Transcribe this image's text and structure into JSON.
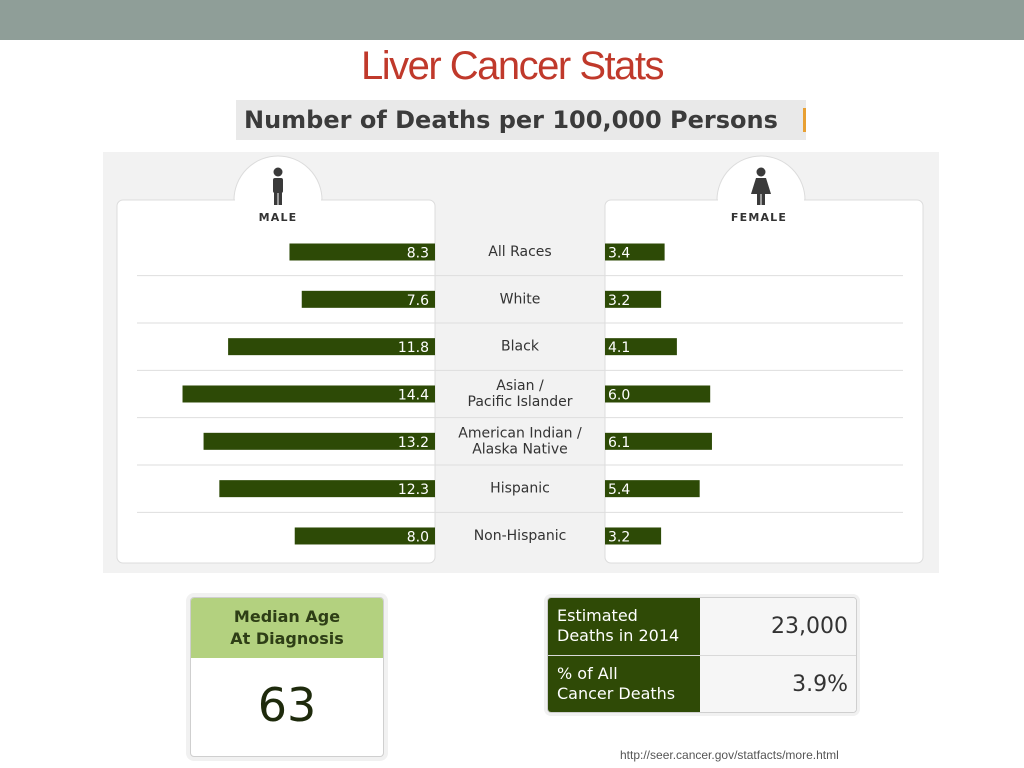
{
  "slide": {
    "title": "Liver Cancer Stats",
    "source": "http://seer.cancer.gov/statfacts/more.html"
  },
  "chart": {
    "heading": "Number of Deaths per 100,000 Persons"
  },
  "colors": {
    "bar": "#2d4a06",
    "title": "#c0392b",
    "top_bar": "#8f9e98",
    "median_header": "#b3d17f"
  },
  "chart_data": {
    "type": "bar",
    "title": "Number of Deaths per 100,000 Persons",
    "categories": [
      "All Races",
      "White",
      "Black",
      "Asian / Pacific Islander",
      "American Indian / Alaska Native",
      "Hispanic",
      "Non-Hispanic"
    ],
    "category_lines": [
      [
        "All Races"
      ],
      [
        "White"
      ],
      [
        "Black"
      ],
      [
        "Asian /",
        "Pacific Islander"
      ],
      [
        "American Indian /",
        "Alaska Native"
      ],
      [
        "Hispanic"
      ],
      [
        "Non-Hispanic"
      ]
    ],
    "series": [
      {
        "name": "MALE",
        "values": [
          8.3,
          7.6,
          11.8,
          14.4,
          13.2,
          12.3,
          8.0
        ],
        "labels": [
          "8.3",
          "7.6",
          "11.8",
          "14.4",
          "13.2",
          "12.3",
          "8.0"
        ],
        "icon": "male-person-icon"
      },
      {
        "name": "FEMALE",
        "values": [
          3.4,
          3.2,
          4.1,
          6.0,
          6.1,
          5.4,
          3.2
        ],
        "labels": [
          "3.4",
          "3.2",
          "4.1",
          "6.0",
          "6.1",
          "5.4",
          "3.2"
        ],
        "icon": "female-person-icon"
      }
    ],
    "orientation": "horizontal-butterfly",
    "xlim": [
      0,
      15
    ],
    "grid": false
  },
  "median_age": {
    "label_line1": "Median Age",
    "label_line2": "At Diagnosis",
    "value": "63"
  },
  "stats": [
    {
      "label_line1": "Estimated",
      "label_line2": "Deaths in 2014",
      "value": "23,000"
    },
    {
      "label_line1": "% of All",
      "label_line2": "Cancer Deaths",
      "value": "3.9%"
    }
  ]
}
